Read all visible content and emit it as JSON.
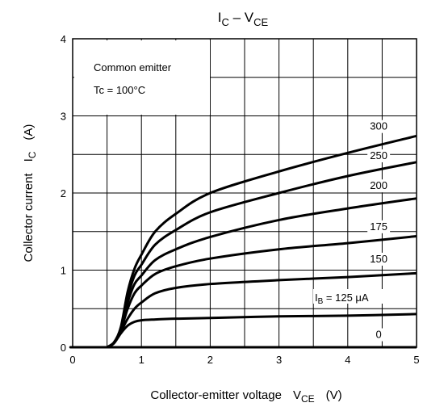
{
  "chart_data": {
    "type": "line",
    "title": {
      "main": "I",
      "main_sub": "C",
      "sep": " – V",
      "tail_sub": "CE"
    },
    "xlabel": {
      "text": "Collector-emitter voltage",
      "sym": "V",
      "sym_sub": "CE",
      "unit": "(V)"
    },
    "ylabel": {
      "text": "Collector current",
      "sym": "I",
      "sym_sub": "C",
      "unit": "(A)"
    },
    "xlim": [
      0,
      5
    ],
    "ylim": [
      0,
      4
    ],
    "xticks": [
      "0",
      "1",
      "2",
      "3",
      "4",
      "5"
    ],
    "yticks": [
      "0",
      "1",
      "2",
      "3",
      "4"
    ],
    "grid": true,
    "annotations": {
      "box_line1": "Common emitter",
      "box_line2": "Tc = 100°C",
      "ib_prefix": "I",
      "ib_sub": "B",
      "ib_suffix": " = 125 μA"
    },
    "series": [
      {
        "name": "0",
        "x": [
          0,
          0.5,
          5
        ],
        "y": [
          0,
          0,
          0
        ]
      },
      {
        "name": "125",
        "x": [
          0.5,
          0.6,
          0.7,
          0.8,
          0.9,
          1.0,
          1.2,
          1.5,
          2.0,
          3.0,
          4.0,
          5.0
        ],
        "y": [
          0,
          0.05,
          0.18,
          0.28,
          0.33,
          0.35,
          0.36,
          0.37,
          0.38,
          0.4,
          0.41,
          0.43
        ]
      },
      {
        "name": "150",
        "x": [
          0.5,
          0.6,
          0.7,
          0.8,
          0.9,
          1.0,
          1.2,
          1.5,
          2.0,
          3.0,
          4.0,
          5.0
        ],
        "y": [
          0,
          0.06,
          0.2,
          0.37,
          0.5,
          0.58,
          0.7,
          0.77,
          0.82,
          0.87,
          0.91,
          0.96
        ]
      },
      {
        "name": "175",
        "x": [
          0.5,
          0.6,
          0.7,
          0.8,
          0.9,
          1.0,
          1.2,
          1.5,
          2.0,
          3.0,
          4.0,
          5.0
        ],
        "y": [
          0,
          0.06,
          0.22,
          0.5,
          0.7,
          0.8,
          0.95,
          1.05,
          1.15,
          1.27,
          1.35,
          1.44
        ]
      },
      {
        "name": "200",
        "x": [
          0.5,
          0.6,
          0.7,
          0.8,
          0.9,
          1.0,
          1.2,
          1.5,
          2.0,
          3.0,
          4.0,
          5.0
        ],
        "y": [
          0,
          0.06,
          0.24,
          0.58,
          0.82,
          0.93,
          1.13,
          1.27,
          1.43,
          1.65,
          1.8,
          1.93
        ]
      },
      {
        "name": "250",
        "x": [
          0.5,
          0.6,
          0.7,
          0.8,
          0.9,
          1.0,
          1.2,
          1.5,
          2.0,
          3.0,
          4.0,
          5.0
        ],
        "y": [
          0,
          0.06,
          0.25,
          0.65,
          0.93,
          1.07,
          1.33,
          1.52,
          1.75,
          2.0,
          2.22,
          2.4
        ]
      },
      {
        "name": "300",
        "x": [
          0.5,
          0.6,
          0.7,
          0.8,
          0.9,
          1.0,
          1.2,
          1.5,
          2.0,
          3.0,
          4.0,
          5.0
        ],
        "y": [
          0,
          0.06,
          0.26,
          0.72,
          1.02,
          1.2,
          1.5,
          1.73,
          2.0,
          2.28,
          2.52,
          2.74
        ]
      }
    ]
  }
}
